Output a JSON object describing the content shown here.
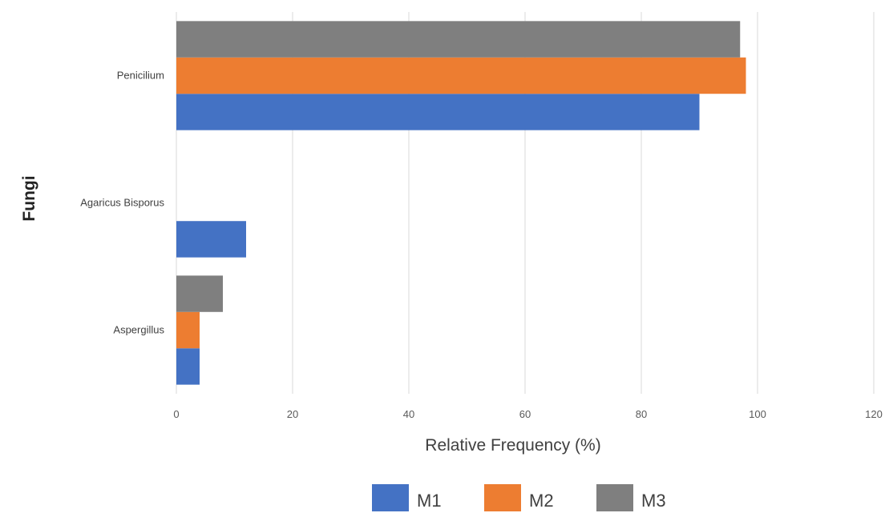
{
  "chart_data": {
    "type": "bar",
    "orientation": "horizontal",
    "categories": [
      "Penicilium",
      "Agaricus Bisporus",
      "Aspergillus"
    ],
    "series": [
      {
        "name": "M1",
        "color": "#4472c4",
        "values": [
          90,
          12,
          4
        ]
      },
      {
        "name": "M2",
        "color": "#ed7d31",
        "values": [
          98,
          0,
          4
        ]
      },
      {
        "name": "M3",
        "color": "#7f7f7f",
        "values": [
          97,
          0,
          8
        ]
      }
    ],
    "xlabel": "Relative Frequency (%)",
    "ylabel": "Fungi",
    "xlim": [
      0,
      120
    ],
    "xticks": [
      "0",
      "20",
      "40",
      "60",
      "80",
      "100",
      "120"
    ],
    "grid": true,
    "legend_position": "bottom"
  }
}
